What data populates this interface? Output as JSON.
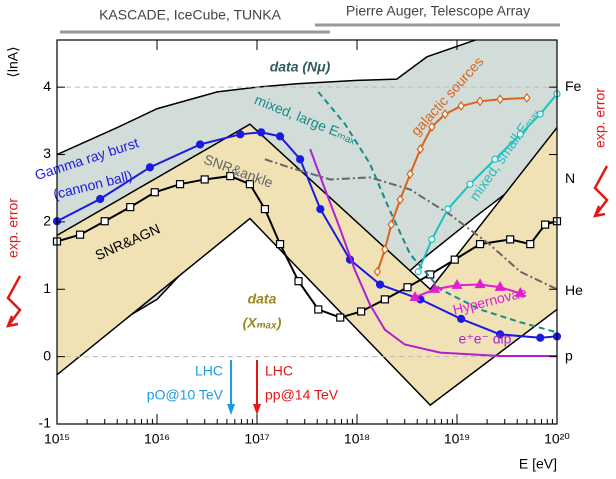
{
  "chart_data": {
    "type": "line",
    "y_label": "⟨lnA⟩",
    "x_label": "E [eV]",
    "xlim": [
      1000000000000000.0,
      1e+20
    ],
    "log_x": true,
    "xticks": [
      {
        "value": 1000000000000000.0,
        "label": "10¹⁵"
      },
      {
        "value": 1e+16,
        "label": "10¹⁶"
      },
      {
        "value": 1e+17,
        "label": "10¹⁷"
      },
      {
        "value": 1e+18,
        "label": "10¹⁸"
      },
      {
        "value": 1e+19,
        "label": "10¹⁹"
      },
      {
        "value": 1e+20,
        "label": "10²⁰"
      }
    ],
    "ylim": [
      -1,
      4.7
    ],
    "yticks": [
      -1,
      0,
      1,
      2,
      3,
      4
    ],
    "reference_lines": [
      0,
      4
    ],
    "mass_labels": [
      {
        "label": "Fe",
        "value": 4
      },
      {
        "label": "N",
        "value": 2.63
      },
      {
        "label": "He",
        "value": 0.97
      },
      {
        "label": "p",
        "value": 0
      }
    ],
    "experiments": [
      "KASCADE, IceCube, TUNKA",
      "Pierre Auger, Telescope Array"
    ],
    "side_labels": [
      "exp. error",
      "exp. error"
    ],
    "bands": [
      {
        "label_lines": [
          "data (Nμ)"
        ],
        "color": "#d2dcd8",
        "x": [
          1000000000000000.0,
          4000000000000000.0,
          1e+16,
          4e+16,
          1e+17,
          2.5e+17,
          1e+18,
          2.5e+18,
          5e+18,
          1.6e+19,
          1e+20
        ],
        "upper": [
          3.0,
          3.4,
          3.68,
          3.93,
          4.0,
          4.05,
          4.1,
          4.12,
          4.45,
          4.71,
          4.71
        ],
        "lower": [
          1.8,
          0.5,
          0.85,
          1.8,
          2.6,
          1.7,
          0.6,
          1.1,
          1.5,
          2.1,
          3.0
        ]
      },
      {
        "label_lines": [
          "data",
          "(Xₘₐₓ)"
        ],
        "color": "#f0e2b4",
        "x": [
          1000000000000000.0,
          8.5e+16,
          5.4e+18,
          1e+20
        ],
        "upper": [
          1.8,
          3.45,
          1.0,
          3.4
        ],
        "lower": [
          -0.27,
          2.05,
          -0.72,
          0.7
        ]
      }
    ],
    "series": [
      {
        "label_lines": [
          "Gamma ray burst",
          "(cannon ball)"
        ],
        "color": "#1a1ae0",
        "style": "solid",
        "marker": "circle",
        "x": [
          1000000000000000.0,
          2700000000000000.0,
          8500000000000000.0,
          2.7e+16,
          6.8e+16,
          1.1e+17,
          1.7e+17,
          2.7e+17,
          4.3e+17,
          8.5e+17,
          1.7e+18,
          4.3e+18,
          1.1e+19,
          2.7e+19,
          6.8e+19,
          1e+20
        ],
        "values": [
          2.01,
          2.34,
          2.81,
          3.15,
          3.3,
          3.33,
          3.27,
          2.93,
          2.19,
          1.44,
          1.07,
          0.85,
          0.56,
          0.33,
          0.28,
          0.3
        ]
      },
      {
        "label_lines": [
          "SNR&AGN"
        ],
        "color": "#000000",
        "style": "solid",
        "marker": "square",
        "x": [
          1000000000000000.0,
          1700000000000000.0,
          3000000000000000.0,
          5400000000000000.0,
          9500000000000000.0,
          1.7e+16,
          3e+16,
          5.4e+16,
          8.5e+16,
          1.2e+17,
          1.7e+17,
          2.6e+17,
          4.1e+17,
          6.8e+17,
          1.1e+18,
          1.9e+18,
          3.2e+18,
          5.4e+18,
          9.5e+18,
          1.7e+19,
          3.4e+19,
          5.4e+19,
          7.6e+19,
          1e+20
        ],
        "values": [
          1.71,
          1.81,
          2.01,
          2.22,
          2.44,
          2.56,
          2.63,
          2.68,
          2.56,
          2.19,
          1.67,
          1.12,
          0.7,
          0.58,
          0.67,
          0.85,
          1.03,
          1.22,
          1.44,
          1.67,
          1.74,
          1.67,
          1.96,
          2.01
        ]
      },
      {
        "label_lines": [
          "SNR&ankle"
        ],
        "color": "#666666",
        "style": "dash-dot",
        "marker": "none",
        "x": [
          1.2e+17,
          2.1e+17,
          5.4e+17,
          1.35e+18,
          3.4e+18,
          8.5e+18,
          2.1e+19,
          4.3e+19,
          1e+20
        ],
        "values": [
          2.93,
          2.81,
          2.63,
          2.66,
          2.48,
          2.11,
          1.67,
          1.26,
          1.0
        ]
      },
      {
        "label_lines": [
          "mixed, large Eₘₐₓ"
        ],
        "color": "#1a8a8a",
        "style": "dashed",
        "marker": "none",
        "x": [
          4.1e+17,
          7.6e+17,
          1.35e+18,
          2.1e+18,
          3.4e+18,
          6.8e+18,
          1.7e+19,
          4.3e+19,
          1e+20
        ],
        "values": [
          3.93,
          3.45,
          2.86,
          2.19,
          1.52,
          1.0,
          0.7,
          0.51,
          0.36
        ]
      },
      {
        "label_lines": [
          "mixed, small Eₘₐₓ"
        ],
        "color": "#20c0c0",
        "style": "solid",
        "marker": "open-circle",
        "x": [
          4.1e+18,
          5.6e+18,
          8.1e+18,
          1.35e+19,
          2.4e+19,
          4.3e+19,
          6.8e+19,
          1e+20
        ],
        "values": [
          1.26,
          1.74,
          2.19,
          2.56,
          2.93,
          3.3,
          3.6,
          3.9
        ]
      },
      {
        "label_lines": [
          "galactic sources"
        ],
        "color": "#d8641e",
        "style": "solid",
        "marker": "diamond",
        "x": [
          1.6e+18,
          1.9e+18,
          2.2e+18,
          2.7e+18,
          3.4e+18,
          4.3e+18,
          5.6e+18,
          7.6e+18,
          1.1e+19,
          1.7e+19,
          2.7e+19,
          5e+19
        ],
        "values": [
          1.26,
          1.59,
          1.96,
          2.33,
          2.71,
          3.08,
          3.41,
          3.6,
          3.72,
          3.79,
          3.82,
          3.84
        ]
      },
      {
        "label_lines": [
          "Hypernovae"
        ],
        "color": "#e020d0",
        "style": "solid",
        "marker": "triangle",
        "x": [
          3.8e+18,
          6e+18,
          1e+19,
          1.7e+19,
          2.7e+19,
          4.3e+19
        ],
        "values": [
          0.88,
          1.0,
          1.06,
          1.07,
          1.03,
          0.94
        ]
      },
      {
        "label_lines": [
          "e⁺e⁻ dip"
        ],
        "color": "#b020d0",
        "style": "solid",
        "marker": "none",
        "x": [
          3.4e+17,
          4.8e+17,
          6.8e+17,
          9.5e+17,
          1.35e+18,
          1.9e+18,
          3e+18,
          6.8e+18,
          2.7e+19,
          1e+20
        ],
        "values": [
          3.08,
          2.48,
          1.89,
          1.29,
          0.77,
          0.4,
          0.18,
          0.06,
          0.01,
          0.01
        ]
      }
    ],
    "lhc": [
      {
        "label_lines": [
          "LHC",
          "pO@10 TeV"
        ],
        "color": "#1e9be0",
        "energy": 5.5e+16
      },
      {
        "label_lines": [
          "LHC",
          "pp@14 TeV"
        ],
        "color": "#e01818",
        "energy": 1e+17
      }
    ]
  }
}
